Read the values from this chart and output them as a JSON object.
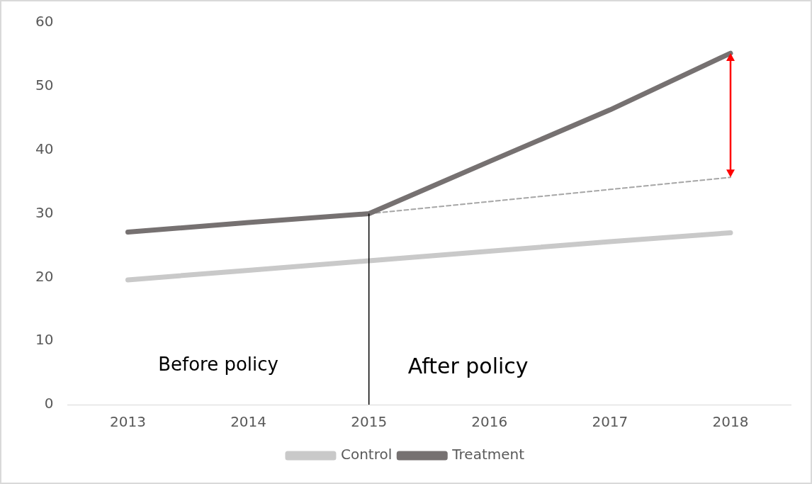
{
  "chart_data": {
    "type": "line",
    "categories": [
      "2013",
      "2014",
      "2015",
      "2016",
      "2017",
      "2018"
    ],
    "series": [
      {
        "name": "Control",
        "color": "#c9c9c9",
        "values": [
          19.6,
          21.1,
          22.6,
          24.1,
          25.6,
          27.0
        ]
      },
      {
        "name": "Treatment",
        "color": "#767171",
        "values": [
          27.1,
          28.6,
          30.0,
          38.2,
          46.3,
          55.2
        ]
      },
      {
        "color": "#a6a6a6",
        "line_style": "dashed",
        "values": [
          null,
          null,
          30.0,
          31.9,
          33.8,
          35.7
        ]
      }
    ],
    "ylim": [
      0,
      60
    ],
    "yticks": [
      0,
      10,
      20,
      30,
      40,
      50,
      60
    ],
    "grid": false,
    "legend": "bottom",
    "marker": "none",
    "ref_lines": [
      {
        "axis": "x",
        "value": "2015",
        "color": "#000000"
      }
    ],
    "annotations": [
      "Before policy",
      "After policy"
    ]
  }
}
